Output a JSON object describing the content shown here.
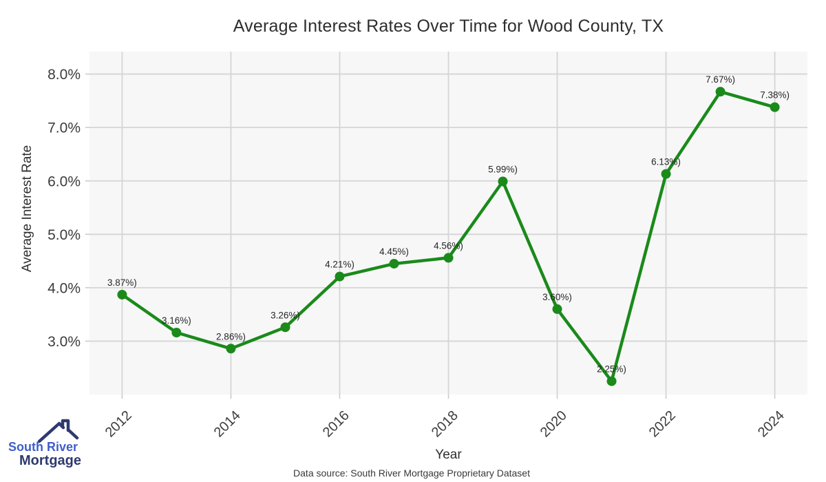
{
  "header": {
    "title": "Average Interest Rates Over Time for Wood County, TX"
  },
  "axes": {
    "x_label": "Year",
    "y_label": "Average Interest Rate"
  },
  "footer": {
    "source": "Data source: South River Mortgage Proprietary Dataset"
  },
  "logo": {
    "icon": "house-roof-icon",
    "line1": "South River",
    "line2": "Mortgage",
    "color_accent": "#3f5ec9",
    "color_dark": "#2e3a6e"
  },
  "colors": {
    "line": "#1a8a1a",
    "plot_background": "#f7f7f7",
    "gridline": "#d5d5d5",
    "tick": "#c8c8c8",
    "tick_text": "#3c3c3c",
    "label_text": "#262626"
  },
  "chart_data": {
    "type": "line",
    "title": "Average Interest Rates Over Time for Wood County, TX",
    "xlabel": "Year",
    "ylabel": "Average Interest Rate",
    "x": [
      2012,
      2013,
      2014,
      2015,
      2016,
      2017,
      2018,
      2019,
      2020,
      2021,
      2022,
      2023,
      2024
    ],
    "values": [
      3.87,
      3.16,
      2.86,
      3.26,
      4.21,
      4.45,
      4.56,
      5.99,
      3.6,
      2.25,
      6.13,
      7.67,
      7.38
    ],
    "point_labels": [
      "3.87%)",
      "3.16%)",
      "2.86%)",
      "3.26%)",
      "4.21%)",
      "4.45%)",
      "4.56%)",
      "5.99%)",
      "3.60%)",
      "2.25%)",
      "6.13%)",
      "7.67%)",
      "7.38%)"
    ],
    "xticks": [
      2012,
      2014,
      2016,
      2018,
      2020,
      2022,
      2024
    ],
    "xtick_labels": [
      "2012",
      "2014",
      "2016",
      "2018",
      "2020",
      "2022",
      "2024"
    ],
    "yticks": [
      3,
      4,
      5,
      6,
      7,
      8
    ],
    "ytick_labels": [
      "3.0%",
      "4.0%",
      "5.0%",
      "6.0%",
      "7.0%",
      "8.0%"
    ],
    "xlim": [
      2011.4,
      2024.6
    ],
    "ylim": [
      2.0,
      8.42
    ],
    "grid": true,
    "legend": "none",
    "line_color": "#1a8a1a",
    "marker": "circle"
  }
}
